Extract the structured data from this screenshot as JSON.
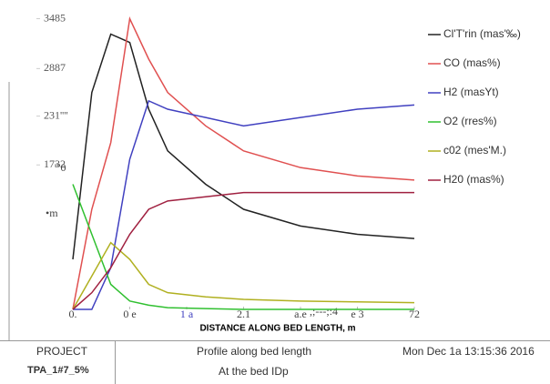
{
  "chart_data": {
    "type": "line",
    "xlabel": "DISTANCE ALONG BED LENGTH, m",
    "x": [
      0,
      0.2,
      0.4,
      0.6,
      0.8,
      1.0,
      1.4,
      1.8,
      2.4,
      3.0,
      3.6
    ],
    "xlim": [
      0,
      3.6
    ],
    "xticks": [
      {
        "value": 0,
        "label": "0."
      },
      {
        "value": 0.6,
        "label": "0 e"
      },
      {
        "value": 1.2,
        "label": "1 a"
      },
      {
        "value": 1.8,
        "label": "2.1"
      },
      {
        "value": 2.4,
        "label": "a.e"
      },
      {
        "value": 3.0,
        "label": "e 3"
      },
      {
        "value": 3.6,
        "label": "72"
      }
    ],
    "ylim": [
      0,
      3600
    ],
    "yticks": [
      3485,
      2887,
      {
        "value": 2317,
        "label": "231''''"
      },
      1732
    ],
    "annotations": [
      "'''0",
      "•m",
      ",;---;:4"
    ],
    "series": [
      {
        "name": "Cl'T'rin (mas'‰)",
        "color": "#222222",
        "values": [
          600,
          2600,
          3300,
          3200,
          2400,
          1900,
          1500,
          1200,
          1000,
          900,
          850
        ]
      },
      {
        "name": "CO (mas%)",
        "color": "#e05050",
        "values": [
          0,
          1200,
          2000,
          3485,
          3000,
          2600,
          2200,
          1900,
          1700,
          1600,
          1550
        ]
      },
      {
        "name": "H2 (masYt)",
        "color": "#4040c0",
        "values": [
          0,
          0,
          500,
          1800,
          2500,
          2400,
          2300,
          2200,
          2300,
          2400,
          2450
        ]
      },
      {
        "name": "O2 (rres%)",
        "color": "#30c030",
        "values": [
          1500,
          900,
          300,
          100,
          50,
          20,
          10,
          0,
          0,
          0,
          0
        ]
      },
      {
        "name": "c02 (mes'M.)",
        "color": "#b0b020",
        "values": [
          0,
          400,
          800,
          600,
          300,
          200,
          150,
          120,
          100,
          90,
          80
        ]
      },
      {
        "name": "H20 (mas%)",
        "color": "#a02040",
        "values": [
          0,
          200,
          500,
          900,
          1200,
          1300,
          1350,
          1400,
          1400,
          1400,
          1400
        ]
      }
    ]
  },
  "footer": {
    "project_label": "PROJECT",
    "project": "TPA_1#7_5%",
    "title": "Profile along bed length",
    "subtitle": "At the bed IDp",
    "timestamp": "Mon Dec 1a 13:15:36 2016"
  }
}
